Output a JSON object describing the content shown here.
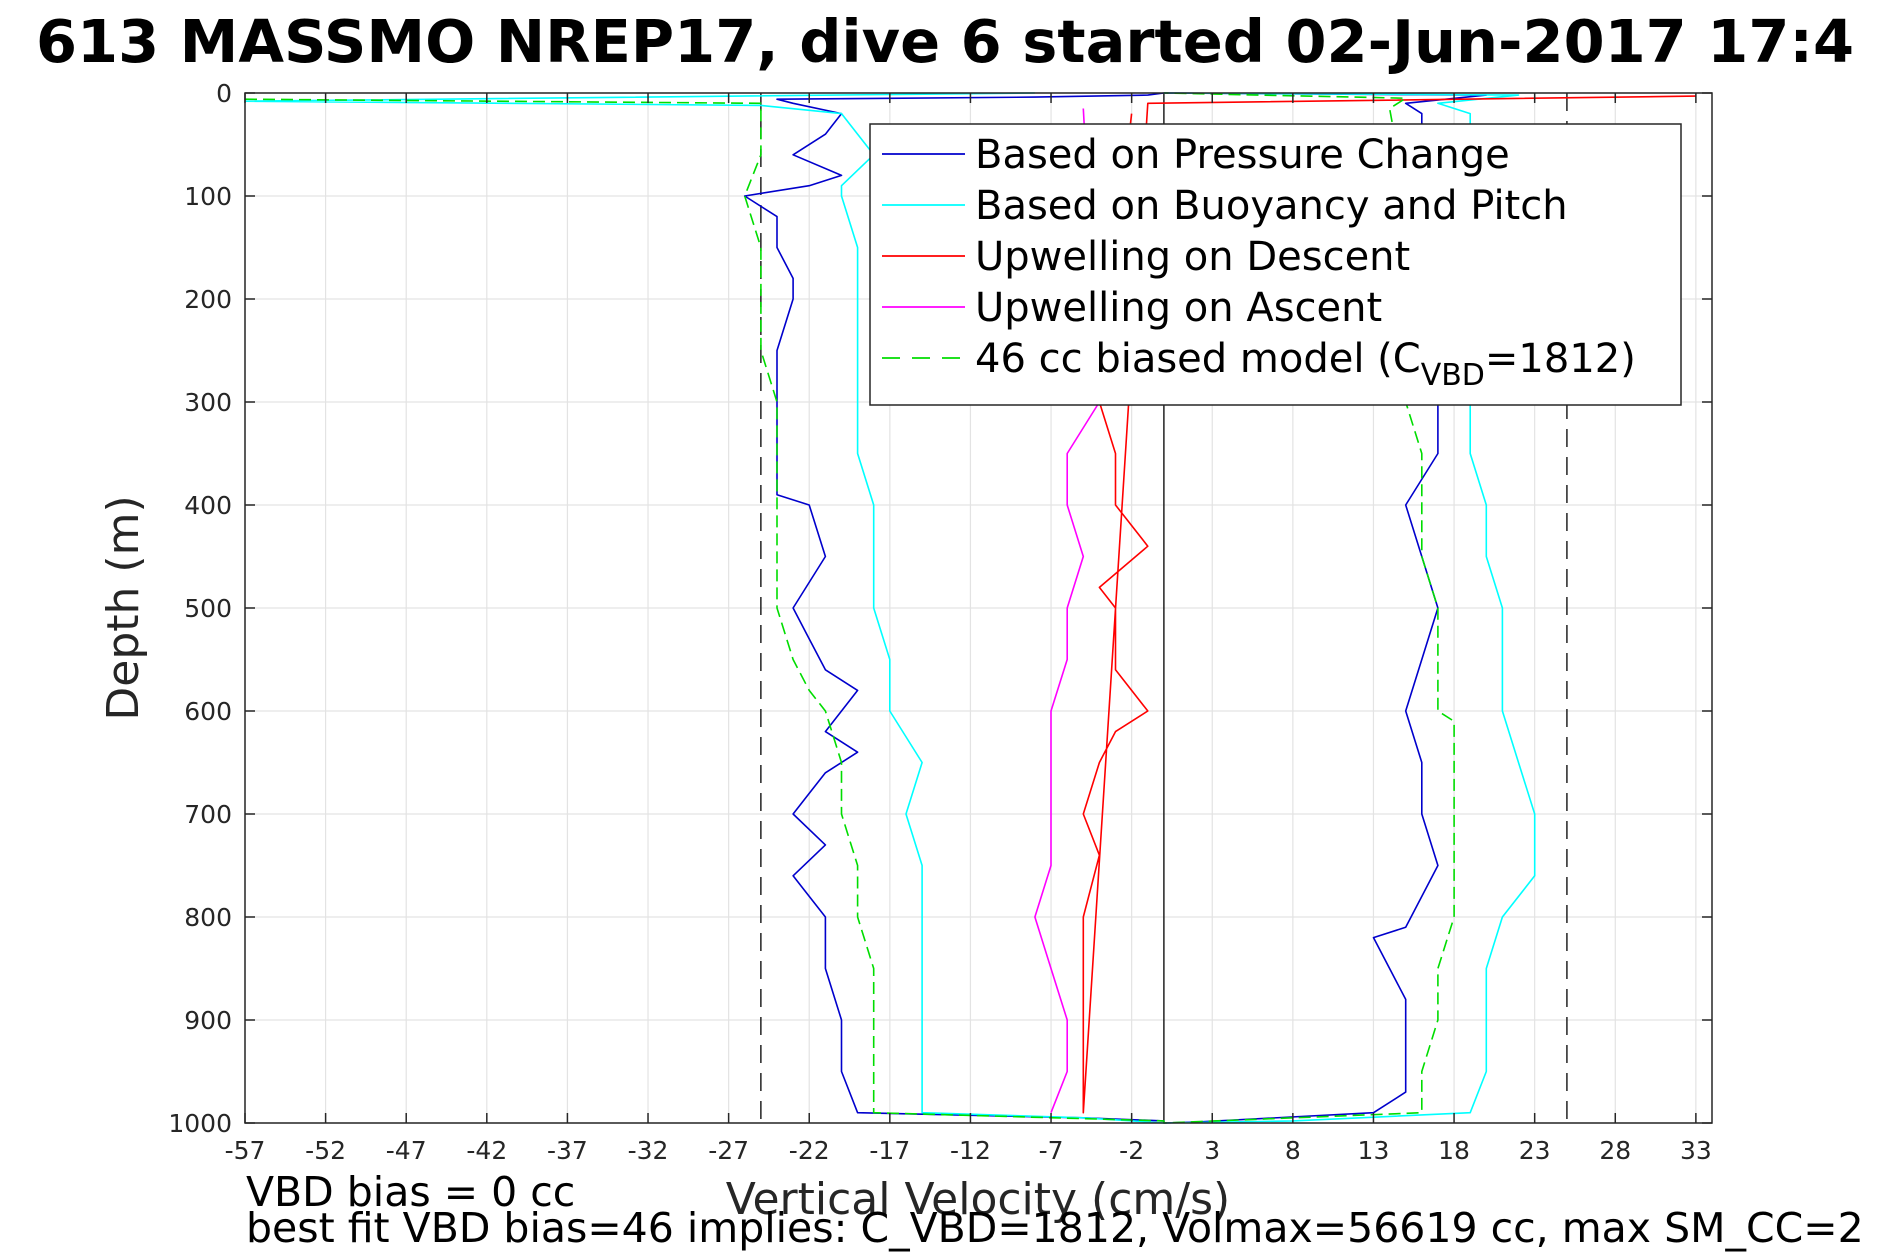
{
  "chart_data": {
    "type": "line",
    "title": "613 MASSMO NREP17, dive 6 started 02-Jun-2017 17:4",
    "xlabel": "Vertical Velocity (cm/s)",
    "ylabel": "Depth (m)",
    "xlim": [
      -57,
      34
    ],
    "ylim": [
      0,
      1000
    ],
    "y_reversed": true,
    "grid": true,
    "x_ticks": [
      -57,
      -52,
      -47,
      -42,
      -37,
      -32,
      -27,
      -22,
      -17,
      -12,
      -7,
      -2,
      3,
      8,
      13,
      18,
      23,
      28,
      33
    ],
    "y_ticks": [
      0,
      100,
      200,
      300,
      400,
      500,
      600,
      700,
      800,
      900,
      1000
    ],
    "legend_position": "top-right",
    "reference_lines": {
      "dashed_x": [
        -25,
        25
      ],
      "solid_x": [
        0
      ]
    },
    "series": [
      {
        "name": "Based on Pressure Change",
        "color": "#0000cc",
        "style": "solid",
        "points": [
          [
            0,
            0
          ],
          [
            -1,
            2
          ],
          [
            -8,
            4
          ],
          [
            -24,
            6
          ],
          [
            -23,
            10
          ],
          [
            -20,
            20
          ],
          [
            -21,
            40
          ],
          [
            -23,
            60
          ],
          [
            -20,
            80
          ],
          [
            -22,
            90
          ],
          [
            -26,
            100
          ],
          [
            -24,
            120
          ],
          [
            -24,
            150
          ],
          [
            -23,
            180
          ],
          [
            -23,
            200
          ],
          [
            -24,
            250
          ],
          [
            -24,
            300
          ],
          [
            -24,
            350
          ],
          [
            -24,
            390
          ],
          [
            -22,
            400
          ],
          [
            -21,
            450
          ],
          [
            -23,
            500
          ],
          [
            -22,
            530
          ],
          [
            -21,
            560
          ],
          [
            -19,
            580
          ],
          [
            -20,
            600
          ],
          [
            -21,
            620
          ],
          [
            -19,
            640
          ],
          [
            -21,
            660
          ],
          [
            -22,
            680
          ],
          [
            -23,
            700
          ],
          [
            -21,
            730
          ],
          [
            -23,
            760
          ],
          [
            -21,
            800
          ],
          [
            -21,
            850
          ],
          [
            -20,
            900
          ],
          [
            -20,
            950
          ],
          [
            -19,
            990
          ],
          [
            -5,
            995
          ],
          [
            0,
            998
          ],
          [
            0,
            1000
          ],
          [
            2,
            999
          ],
          [
            13,
            990
          ],
          [
            15,
            970
          ],
          [
            15,
            930
          ],
          [
            15,
            880
          ],
          [
            14,
            850
          ],
          [
            13,
            820
          ],
          [
            15,
            810
          ],
          [
            16,
            780
          ],
          [
            17,
            750
          ],
          [
            16,
            700
          ],
          [
            16,
            650
          ],
          [
            15,
            600
          ],
          [
            16,
            550
          ],
          [
            17,
            500
          ],
          [
            16,
            450
          ],
          [
            15,
            400
          ],
          [
            17,
            350
          ],
          [
            17,
            300
          ],
          [
            16,
            200
          ],
          [
            16,
            100
          ],
          [
            16,
            20
          ],
          [
            15,
            10
          ],
          [
            20,
            2
          ],
          [
            0,
            0
          ]
        ]
      },
      {
        "name": "Based on Buoyancy and Pitch",
        "color": "#00ffff",
        "style": "solid",
        "points": [
          [
            -8,
            0
          ],
          [
            -57,
            8
          ],
          [
            -25,
            12
          ],
          [
            -20,
            20
          ],
          [
            -18,
            60
          ],
          [
            -20,
            90
          ],
          [
            -20,
            100
          ],
          [
            -19,
            150
          ],
          [
            -19,
            200
          ],
          [
            -19,
            250
          ],
          [
            -19,
            300
          ],
          [
            -19,
            350
          ],
          [
            -18,
            400
          ],
          [
            -18,
            450
          ],
          [
            -18,
            500
          ],
          [
            -17,
            550
          ],
          [
            -17,
            600
          ],
          [
            -15,
            650
          ],
          [
            -16,
            700
          ],
          [
            -15,
            750
          ],
          [
            -15,
            800
          ],
          [
            -15,
            850
          ],
          [
            -15,
            900
          ],
          [
            -15,
            950
          ],
          [
            -15,
            990
          ],
          [
            -5,
            995
          ],
          [
            0,
            1000
          ],
          [
            0,
            1000
          ],
          [
            8,
            998
          ],
          [
            19,
            990
          ],
          [
            20,
            950
          ],
          [
            20,
            900
          ],
          [
            20,
            850
          ],
          [
            21,
            800
          ],
          [
            23,
            760
          ],
          [
            23,
            720
          ],
          [
            23,
            700
          ],
          [
            22,
            650
          ],
          [
            21,
            600
          ],
          [
            21,
            550
          ],
          [
            21,
            500
          ],
          [
            20,
            450
          ],
          [
            20,
            400
          ],
          [
            19,
            350
          ],
          [
            19,
            300
          ],
          [
            19,
            100
          ],
          [
            19,
            20
          ],
          [
            17,
            10
          ],
          [
            22,
            2
          ],
          [
            0,
            0
          ]
        ]
      },
      {
        "name": "Upwelling on Descent",
        "color": "#ff0000",
        "style": "solid",
        "points": [
          [
            -2,
            20
          ],
          [
            -4,
            300
          ],
          [
            -3,
            350
          ],
          [
            -3,
            400
          ],
          [
            -1,
            440
          ],
          [
            -4,
            480
          ],
          [
            -3,
            500
          ],
          [
            -3,
            560
          ],
          [
            -1,
            600
          ],
          [
            -3,
            620
          ],
          [
            -4,
            650
          ],
          [
            -5,
            700
          ],
          [
            -4,
            740
          ],
          [
            -5,
            800
          ],
          [
            -5,
            850
          ],
          [
            -5,
            900
          ],
          [
            -5,
            950
          ],
          [
            -5,
            990
          ],
          [
            -1,
            10
          ],
          [
            33,
            3
          ]
        ]
      },
      {
        "name": "Upwelling on Ascent",
        "color": "#ff00ff",
        "style": "solid",
        "points": [
          [
            -5,
            15
          ],
          [
            -4,
            300
          ],
          [
            -6,
            350
          ],
          [
            -6,
            400
          ],
          [
            -5,
            450
          ],
          [
            -6,
            500
          ],
          [
            -6,
            550
          ],
          [
            -7,
            600
          ],
          [
            -7,
            650
          ],
          [
            -7,
            700
          ],
          [
            -7,
            750
          ],
          [
            -8,
            800
          ],
          [
            -7,
            850
          ],
          [
            -6,
            900
          ],
          [
            -6,
            950
          ],
          [
            -7,
            990
          ]
        ]
      },
      {
        "name": "46 cc biased model (C_VBD=1812)",
        "color": "#00dd00",
        "style": "dashed",
        "points": [
          [
            -57,
            6
          ],
          [
            -25,
            10
          ],
          [
            -25,
            20
          ],
          [
            -25,
            60
          ],
          [
            -26,
            100
          ],
          [
            -25,
            150
          ],
          [
            -25,
            200
          ],
          [
            -25,
            250
          ],
          [
            -24,
            300
          ],
          [
            -24,
            400
          ],
          [
            -24,
            450
          ],
          [
            -24,
            500
          ],
          [
            -23,
            550
          ],
          [
            -22,
            580
          ],
          [
            -21,
            600
          ],
          [
            -20,
            650
          ],
          [
            -20,
            700
          ],
          [
            -19,
            750
          ],
          [
            -19,
            800
          ],
          [
            -18,
            850
          ],
          [
            -18,
            900
          ],
          [
            -18,
            950
          ],
          [
            -18,
            990
          ],
          [
            0,
            998
          ],
          [
            0,
            1000
          ],
          [
            16,
            990
          ],
          [
            16,
            950
          ],
          [
            17,
            900
          ],
          [
            17,
            850
          ],
          [
            18,
            800
          ],
          [
            18,
            750
          ],
          [
            18,
            700
          ],
          [
            18,
            650
          ],
          [
            18,
            610
          ],
          [
            17,
            600
          ],
          [
            17,
            550
          ],
          [
            17,
            500
          ],
          [
            16,
            450
          ],
          [
            16,
            400
          ],
          [
            16,
            350
          ],
          [
            15,
            300
          ],
          [
            15,
            100
          ],
          [
            14,
            15
          ],
          [
            15,
            5
          ],
          [
            0,
            0
          ]
        ]
      }
    ]
  },
  "legend": {
    "items": [
      {
        "label": "Based on Pressure Change",
        "color": "#0000cc",
        "style": "solid"
      },
      {
        "label": "Based on Buoyancy and Pitch",
        "color": "#00ffff",
        "style": "solid"
      },
      {
        "label": "Upwelling on Descent",
        "color": "#ff0000",
        "style": "solid"
      },
      {
        "label": "Upwelling on Ascent",
        "color": "#ff00ff",
        "style": "solid"
      },
      {
        "label_main": "46 cc biased model (C",
        "label_sub": "VBD",
        "label_end": "=1812)",
        "color": "#00dd00",
        "style": "dashed"
      }
    ]
  },
  "footer": {
    "line1": "VBD bias = 0 cc",
    "line2": "best fit VBD bias=46 implies: C_VBD=1812, Volmax=56619 cc, max SM_CC=2"
  }
}
